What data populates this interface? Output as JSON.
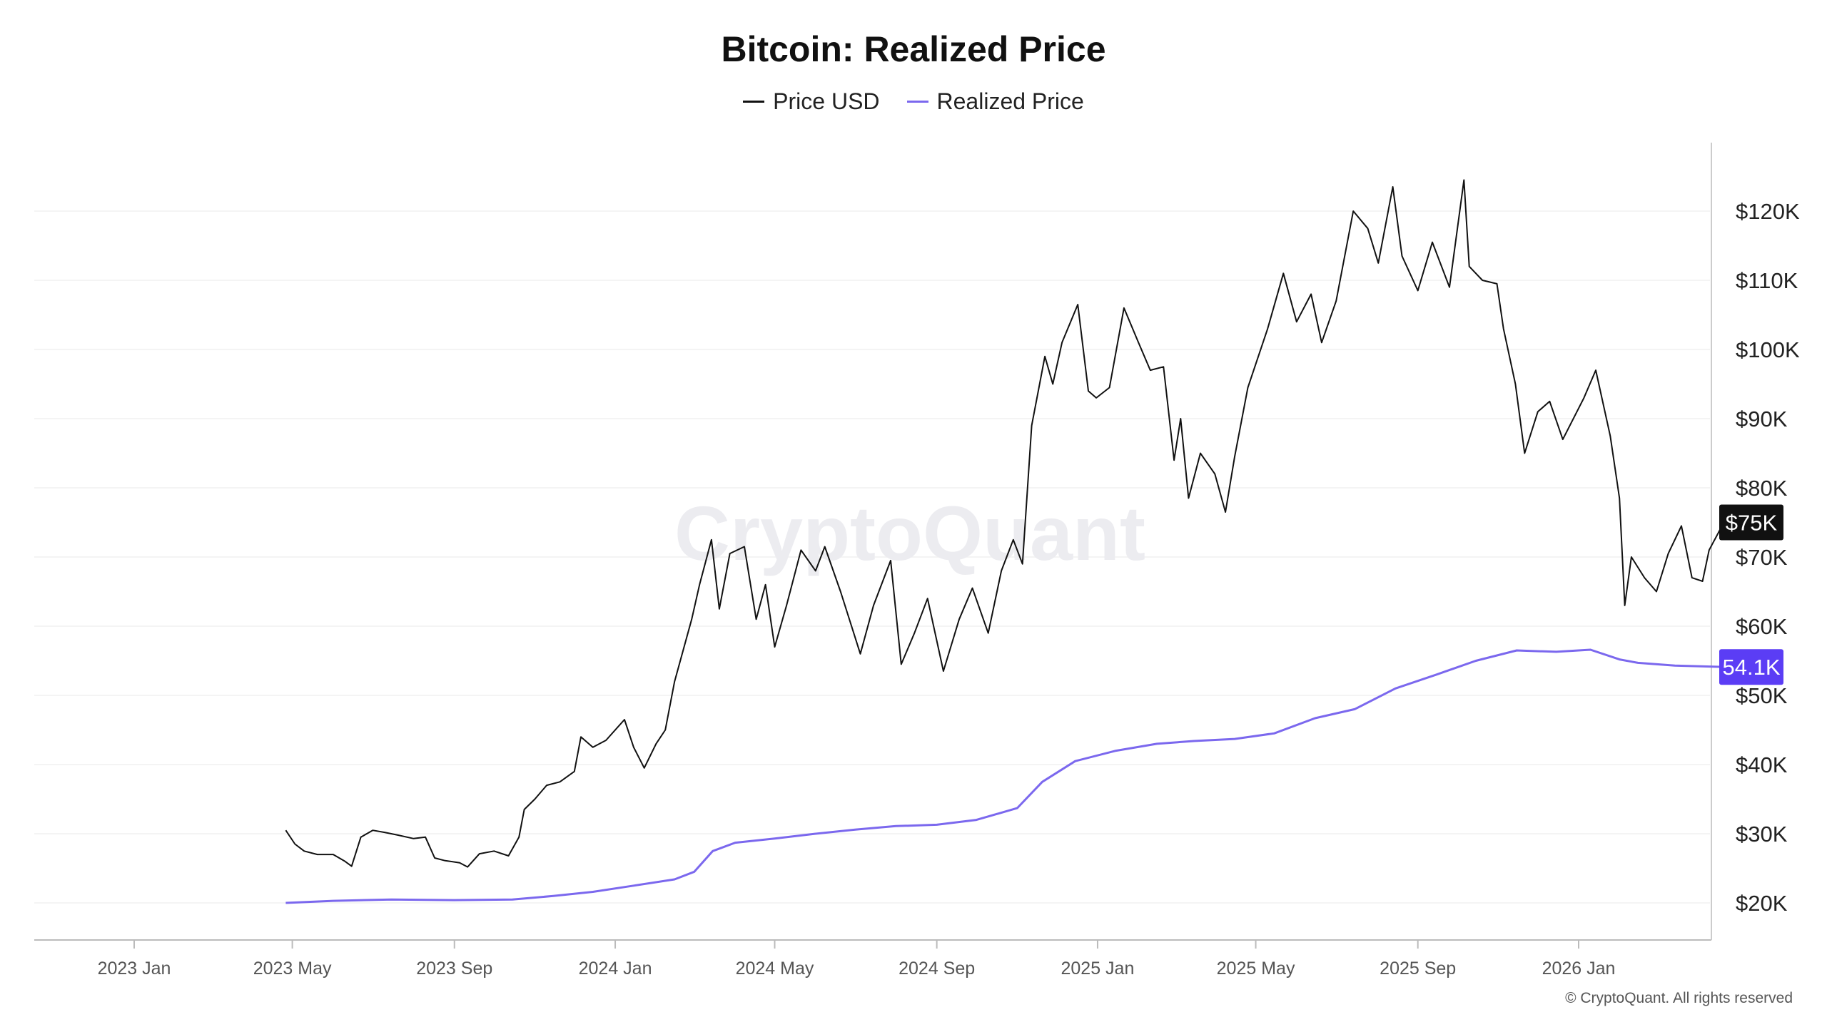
{
  "page": {
    "title": "Bitcoin: Realized Price",
    "watermark": "CryptoQuant",
    "footer": "© CryptoQuant. All rights reserved"
  },
  "chart_data": {
    "type": "line",
    "title": "Bitcoin: Realized Price",
    "xlabel": "",
    "ylabel": "",
    "ylim": [
      15000,
      130000
    ],
    "grid": true,
    "legend_position": "top-center",
    "x_ticks": [
      "2023 Jan",
      "2023 May",
      "2023 Sep",
      "2024 Jan",
      "2024 May",
      "2024 Sep",
      "2025 Jan",
      "2025 May",
      "2025 Sep",
      "2026 Jan"
    ],
    "x_tick_dates": [
      "2023-01-01",
      "2023-05-01",
      "2023-09-01",
      "2024-01-01",
      "2024-05-01",
      "2024-09-01",
      "2025-01-01",
      "2025-05-01",
      "2025-09-01",
      "2026-01-01"
    ],
    "y_ticks": [
      20000,
      30000,
      40000,
      50000,
      60000,
      70000,
      80000,
      90000,
      100000,
      110000,
      120000
    ],
    "y_tick_labels": [
      "$20K",
      "$30K",
      "$40K",
      "$50K",
      "$60K",
      "$70K",
      "$80K",
      "$90K",
      "$100K",
      "$110K",
      "$120K"
    ],
    "series": [
      {
        "name": "Price USD",
        "color": "#111111",
        "current_label": "$75K",
        "points": [
          [
            "2023-04-26",
            30500
          ],
          [
            "2023-05-03",
            28500
          ],
          [
            "2023-05-10",
            27500
          ],
          [
            "2023-05-20",
            27000
          ],
          [
            "2023-06-01",
            27000
          ],
          [
            "2023-06-10",
            26000
          ],
          [
            "2023-06-15",
            25300
          ],
          [
            "2023-06-22",
            29500
          ],
          [
            "2023-07-01",
            30500
          ],
          [
            "2023-07-10",
            30200
          ],
          [
            "2023-07-20",
            29800
          ],
          [
            "2023-08-01",
            29300
          ],
          [
            "2023-08-10",
            29500
          ],
          [
            "2023-08-17",
            26500
          ],
          [
            "2023-08-25",
            26100
          ],
          [
            "2023-09-05",
            25800
          ],
          [
            "2023-09-11",
            25200
          ],
          [
            "2023-09-20",
            27100
          ],
          [
            "2023-10-01",
            27500
          ],
          [
            "2023-10-12",
            26800
          ],
          [
            "2023-10-20",
            29500
          ],
          [
            "2023-10-24",
            33500
          ],
          [
            "2023-11-01",
            35000
          ],
          [
            "2023-11-10",
            37000
          ],
          [
            "2023-11-20",
            37500
          ],
          [
            "2023-12-01",
            39000
          ],
          [
            "2023-12-06",
            44000
          ],
          [
            "2023-12-15",
            42500
          ],
          [
            "2023-12-25",
            43500
          ],
          [
            "2024-01-08",
            46500
          ],
          [
            "2024-01-15",
            42500
          ],
          [
            "2024-01-23",
            39500
          ],
          [
            "2024-02-01",
            43000
          ],
          [
            "2024-02-08",
            45000
          ],
          [
            "2024-02-15",
            52000
          ],
          [
            "2024-02-28",
            61000
          ],
          [
            "2024-03-05",
            66000
          ],
          [
            "2024-03-14",
            72500
          ],
          [
            "2024-03-20",
            62500
          ],
          [
            "2024-03-28",
            70500
          ],
          [
            "2024-04-08",
            71500
          ],
          [
            "2024-04-17",
            61000
          ],
          [
            "2024-04-24",
            66000
          ],
          [
            "2024-05-01",
            57000
          ],
          [
            "2024-05-10",
            63000
          ],
          [
            "2024-05-21",
            71000
          ],
          [
            "2024-06-01",
            68000
          ],
          [
            "2024-06-08",
            71500
          ],
          [
            "2024-06-20",
            65000
          ],
          [
            "2024-07-05",
            56000
          ],
          [
            "2024-07-15",
            63000
          ],
          [
            "2024-07-28",
            69500
          ],
          [
            "2024-08-05",
            54500
          ],
          [
            "2024-08-15",
            59000
          ],
          [
            "2024-08-25",
            64000
          ],
          [
            "2024-09-06",
            53500
          ],
          [
            "2024-09-18",
            61000
          ],
          [
            "2024-09-28",
            65500
          ],
          [
            "2024-10-10",
            59000
          ],
          [
            "2024-10-20",
            68000
          ],
          [
            "2024-10-29",
            72500
          ],
          [
            "2024-11-05",
            69000
          ],
          [
            "2024-11-12",
            89000
          ],
          [
            "2024-11-22",
            99000
          ],
          [
            "2024-11-28",
            95000
          ],
          [
            "2024-12-05",
            101000
          ],
          [
            "2024-12-17",
            106500
          ],
          [
            "2024-12-25",
            94000
          ],
          [
            "2024-12-31",
            93000
          ],
          [
            "2025-01-10",
            94500
          ],
          [
            "2025-01-21",
            106000
          ],
          [
            "2025-02-01",
            101000
          ],
          [
            "2025-02-10",
            97000
          ],
          [
            "2025-02-20",
            97500
          ],
          [
            "2025-02-28",
            84000
          ],
          [
            "2025-03-05",
            90000
          ],
          [
            "2025-03-11",
            78500
          ],
          [
            "2025-03-20",
            85000
          ],
          [
            "2025-03-31",
            82000
          ],
          [
            "2025-04-08",
            76500
          ],
          [
            "2025-04-15",
            84500
          ],
          [
            "2025-04-25",
            94500
          ],
          [
            "2025-05-10",
            103000
          ],
          [
            "2025-05-22",
            111000
          ],
          [
            "2025-06-01",
            104000
          ],
          [
            "2025-06-12",
            108000
          ],
          [
            "2025-06-20",
            101000
          ],
          [
            "2025-07-01",
            107000
          ],
          [
            "2025-07-14",
            120000
          ],
          [
            "2025-07-25",
            117500
          ],
          [
            "2025-08-02",
            112500
          ],
          [
            "2025-08-13",
            123500
          ],
          [
            "2025-08-20",
            113500
          ],
          [
            "2025-09-01",
            108500
          ],
          [
            "2025-09-12",
            115500
          ],
          [
            "2025-09-25",
            109000
          ],
          [
            "2025-10-06",
            124500
          ],
          [
            "2025-10-10",
            112000
          ],
          [
            "2025-10-20",
            110000
          ],
          [
            "2025-10-31",
            109500
          ],
          [
            "2025-11-05",
            103000
          ],
          [
            "2025-11-14",
            95000
          ],
          [
            "2025-11-21",
            85000
          ],
          [
            "2025-12-01",
            91000
          ],
          [
            "2025-12-10",
            92500
          ],
          [
            "2025-12-20",
            87000
          ],
          [
            "2026-01-05",
            93000
          ],
          [
            "2026-01-14",
            97000
          ],
          [
            "2026-01-25",
            87500
          ],
          [
            "2026-02-01",
            78500
          ],
          [
            "2026-02-05",
            63000
          ],
          [
            "2026-02-10",
            70000
          ],
          [
            "2026-02-20",
            67000
          ],
          [
            "2026-03-01",
            65000
          ],
          [
            "2026-03-10",
            70500
          ],
          [
            "2026-03-20",
            74500
          ],
          [
            "2026-03-28",
            67000
          ],
          [
            "2026-04-05",
            66500
          ],
          [
            "2026-04-10",
            71000
          ],
          [
            "2026-04-17",
            73500
          ],
          [
            "2026-04-21",
            75000
          ]
        ]
      },
      {
        "name": "Realized Price",
        "color": "#7b68ee",
        "current_label": "54.1K",
        "points": [
          [
            "2023-04-26",
            20000
          ],
          [
            "2023-06-01",
            20300
          ],
          [
            "2023-07-15",
            20500
          ],
          [
            "2023-09-01",
            20400
          ],
          [
            "2023-10-15",
            20500
          ],
          [
            "2023-11-15",
            21000
          ],
          [
            "2023-12-15",
            21600
          ],
          [
            "2024-01-15",
            22500
          ],
          [
            "2024-02-15",
            23400
          ],
          [
            "2024-03-01",
            24500
          ],
          [
            "2024-03-15",
            27500
          ],
          [
            "2024-04-01",
            28700
          ],
          [
            "2024-05-01",
            29300
          ],
          [
            "2024-06-01",
            30000
          ],
          [
            "2024-07-01",
            30600
          ],
          [
            "2024-08-01",
            31100
          ],
          [
            "2024-09-01",
            31300
          ],
          [
            "2024-10-01",
            32000
          ],
          [
            "2024-11-01",
            33700
          ],
          [
            "2024-11-20",
            37500
          ],
          [
            "2024-12-15",
            40500
          ],
          [
            "2025-01-15",
            42000
          ],
          [
            "2025-02-15",
            43000
          ],
          [
            "2025-03-15",
            43400
          ],
          [
            "2025-04-15",
            43700
          ],
          [
            "2025-05-15",
            44500
          ],
          [
            "2025-06-15",
            46700
          ],
          [
            "2025-07-15",
            48000
          ],
          [
            "2025-08-15",
            51000
          ],
          [
            "2025-09-15",
            53000
          ],
          [
            "2025-10-15",
            55000
          ],
          [
            "2025-11-15",
            56500
          ],
          [
            "2025-12-15",
            56300
          ],
          [
            "2026-01-10",
            56600
          ],
          [
            "2026-02-01",
            55200
          ],
          [
            "2026-02-15",
            54700
          ],
          [
            "2026-03-15",
            54300
          ],
          [
            "2026-04-21",
            54100
          ]
        ]
      }
    ]
  }
}
